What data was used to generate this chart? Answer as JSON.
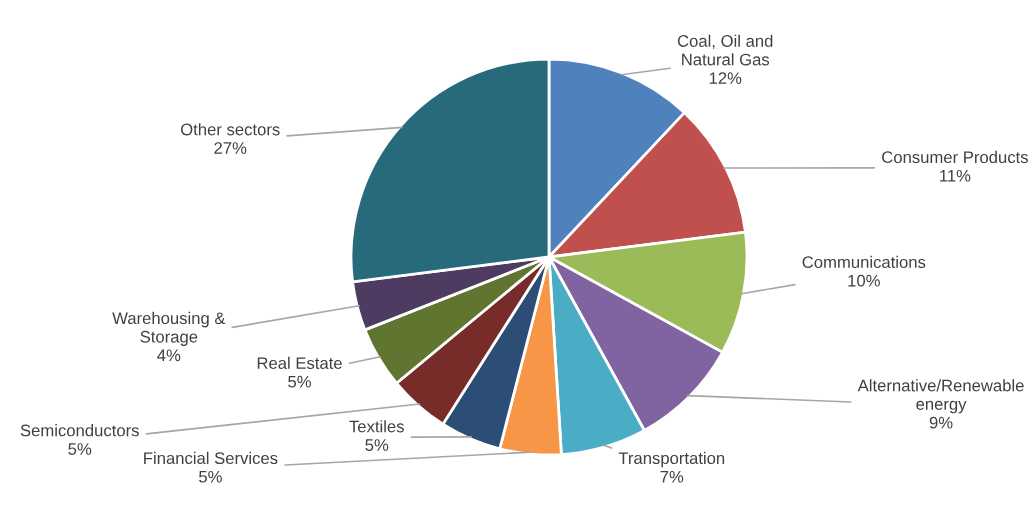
{
  "chart_data": {
    "type": "pie",
    "categories": [
      "Coal, Oil and Natural Gas",
      "Consumer Products",
      "Communications",
      "Alternative/Renewable energy",
      "Transportation",
      "Financial Services",
      "Textiles",
      "Semiconductors",
      "Real Estate",
      "Warehousing & Storage",
      "Other sectors"
    ],
    "values": [
      12,
      11,
      10,
      9,
      7,
      5,
      5,
      5,
      5,
      4,
      27
    ],
    "value_labels": [
      "12%",
      "11%",
      "10%",
      "9%",
      "7%",
      "5%",
      "5%",
      "5%",
      "5%",
      "4%",
      "27%"
    ],
    "colors": [
      "#4f81bd",
      "#c0504d",
      "#9bbb59",
      "#8064a2",
      "#4bacc6",
      "#f79646",
      "#2c4d75",
      "#772c2a",
      "#5f7530",
      "#4d3b62",
      "#276a7c"
    ],
    "legend": false
  }
}
